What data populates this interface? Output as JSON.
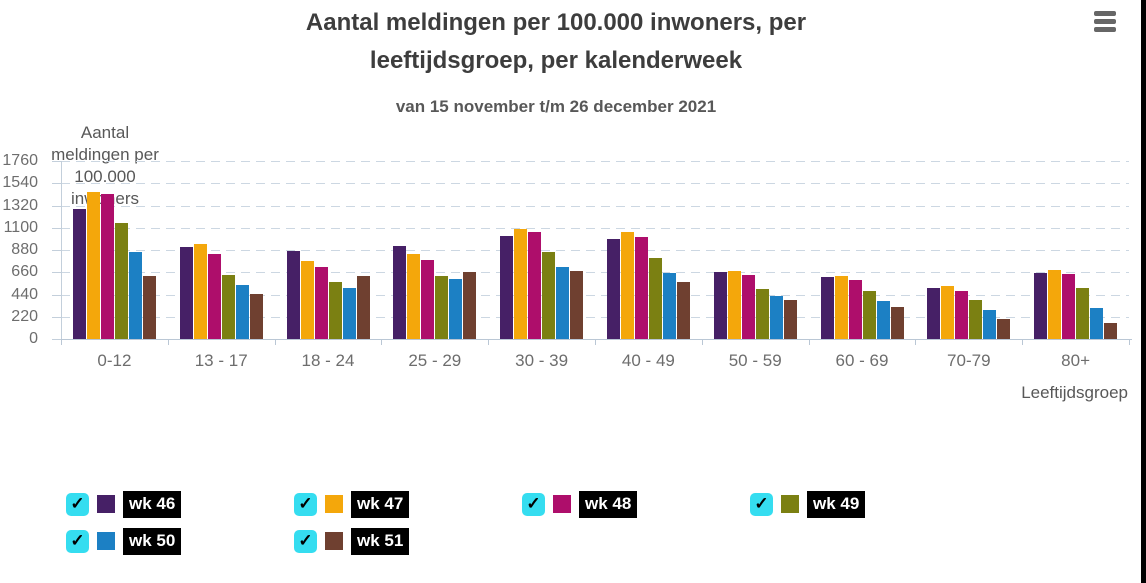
{
  "chart_data": {
    "type": "bar",
    "title": "Aantal meldingen per 100.000 inwoners, per leeftijdsgroep, per kalenderweek",
    "subtitle": "van 15 november t/m 26 december 2021",
    "ylabel": "Aantal meldingen per 100.000 inwoners",
    "xlabel": "Leeftijdsgroep",
    "ylim": [
      0,
      1760
    ],
    "yticks": [
      0,
      220,
      440,
      660,
      880,
      1100,
      1320,
      1540,
      1760
    ],
    "grid": "dashed-horizontal",
    "legend_position": "bottom-left",
    "categories": [
      "0-12",
      "13 - 17",
      "18 - 24",
      "25 - 29",
      "30 - 39",
      "40 - 49",
      "50 - 59",
      "60 - 69",
      "70-79",
      "80+"
    ],
    "series": [
      {
        "name": "wk 46",
        "color": "#462066",
        "values": [
          1285,
          905,
          875,
          920,
          1015,
          985,
          660,
          615,
          500,
          650
        ]
      },
      {
        "name": "wk 47",
        "color": "#F4A70B",
        "values": [
          1455,
          935,
          770,
          845,
          1090,
          1055,
          675,
          620,
          520,
          685
        ]
      },
      {
        "name": "wk 48",
        "color": "#AE0E6B",
        "values": [
          1430,
          845,
          710,
          785,
          1055,
          1010,
          630,
          585,
          475,
          640
        ]
      },
      {
        "name": "wk 49",
        "color": "#7B8012",
        "values": [
          1150,
          635,
          560,
          625,
          860,
          800,
          495,
          475,
          385,
          500
        ]
      },
      {
        "name": "wk 50",
        "color": "#1C80C4",
        "values": [
          865,
          535,
          505,
          590,
          715,
          655,
          425,
          380,
          290,
          310
        ]
      },
      {
        "name": "wk 51",
        "color": "#6F4030",
        "values": [
          620,
          445,
          625,
          665,
          670,
          560,
          390,
          320,
          200,
          160
        ]
      }
    ]
  },
  "legend": {
    "check_glyph": "✓",
    "checkbox_color": "#35DDF0",
    "all_checked": true
  },
  "menu": {
    "icon_name": "hamburger-menu-icon"
  }
}
